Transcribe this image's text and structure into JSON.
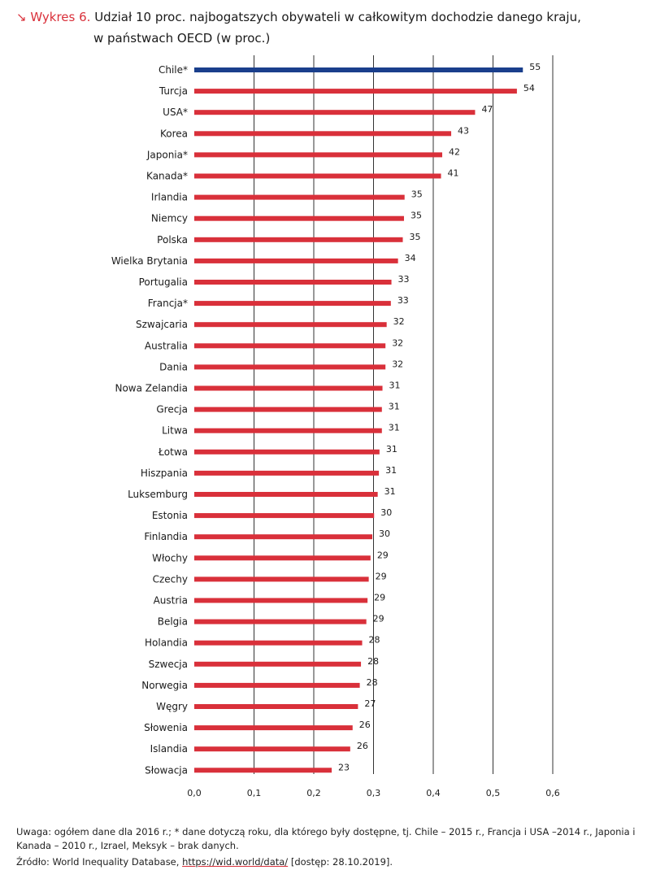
{
  "title": {
    "prefix": "↘ Wykres 6.",
    "line1": " Udział 10 proc. najbogatszych obywateli w całkowitym dochodzie danego kraju,",
    "line2": "w państwach OECD (w proc.)"
  },
  "colors": {
    "highlight": "#1a3f8c",
    "bar": "#d9303a",
    "grid": "#333333",
    "accent": "#d9303a"
  },
  "chart_data": {
    "type": "bar",
    "orientation": "horizontal",
    "title": "Udział 10 proc. najbogatszych obywateli w całkowitym dochodzie danego kraju, w państwach OECD (w proc.)",
    "xlabel": "",
    "ylabel": "",
    "xlim": [
      0,
      0.6
    ],
    "xticks": [
      0.0,
      0.1,
      0.2,
      0.3,
      0.4,
      0.5,
      0.6
    ],
    "xtick_labels": [
      "0,0",
      "0,1",
      "0,2",
      "0,3",
      "0,4",
      "0,5",
      "0,6"
    ],
    "grid": true,
    "highlighted": "Chile*",
    "categories": [
      "Chile*",
      "Turcja",
      "USA*",
      "Korea",
      "Japonia*",
      "Kanada*",
      "Irlandia",
      "Niemcy",
      "Polska",
      "Wielka Brytania",
      "Portugalia",
      "Francja*",
      "Szwajcaria",
      "Australia",
      "Dania",
      "Nowa Zelandia",
      "Grecja",
      "Litwa",
      "Łotwa",
      "Hiszpania",
      "Luksemburg",
      "Estonia",
      "Finlandia",
      "Włochy",
      "Czechy",
      "Austria",
      "Belgia",
      "Holandia",
      "Szwecja",
      "Norwegia",
      "Węgry",
      "Słowenia",
      "Islandia",
      "Słowacja"
    ],
    "values": [
      0.55,
      0.54,
      0.47,
      0.43,
      0.415,
      0.413,
      0.352,
      0.351,
      0.349,
      0.341,
      0.33,
      0.329,
      0.322,
      0.32,
      0.32,
      0.315,
      0.314,
      0.314,
      0.31,
      0.309,
      0.307,
      0.301,
      0.298,
      0.295,
      0.292,
      0.29,
      0.288,
      0.281,
      0.279,
      0.277,
      0.274,
      0.265,
      0.261,
      0.23
    ],
    "data_labels": [
      "55",
      "54",
      "47",
      "43",
      "42",
      "41",
      "35",
      "35",
      "35",
      "34",
      "33",
      "33",
      "32",
      "32",
      "32",
      "31",
      "31",
      "31",
      "31",
      "31",
      "31",
      "30",
      "30",
      "29",
      "29",
      "29",
      "29",
      "28",
      "28",
      "28",
      "27",
      "26",
      "26",
      "23"
    ]
  },
  "footer": {
    "note": "Uwaga: ogółem dane dla 2016 r.; * dane dotyczą roku, dla którego były dostępne, tj. Chile – 2015 r., Francja i USA –2014 r., Japonia i Kanada – 2010 r., Izrael, Meksyk – brak danych.",
    "source_prefix": "Źródło: World Inequality Database, ",
    "source_link": "https://wid.world/data/",
    "source_suffix": " [dostęp: 28.10.2019]."
  }
}
